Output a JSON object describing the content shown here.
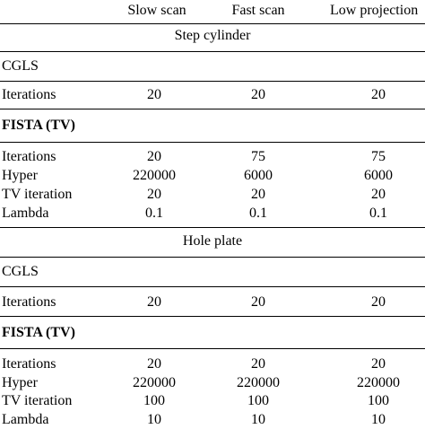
{
  "headers": {
    "col1": "Slow scan",
    "col2": "Fast scan",
    "col3": "Low projection"
  },
  "sections": [
    {
      "title": "Step cylinder",
      "cgls": {
        "label": "CGLS",
        "rows": [
          {
            "label": "Iterations",
            "values": [
              "20",
              "20",
              "20"
            ]
          }
        ]
      },
      "fista": {
        "label": "FISTA (TV)",
        "rows": [
          {
            "label": "Iterations",
            "values": [
              "20",
              "75",
              "75"
            ]
          },
          {
            "label": "Hyper",
            "values": [
              "220000",
              "6000",
              "6000"
            ]
          },
          {
            "label": "TV iteration",
            "values": [
              "20",
              "20",
              "20"
            ]
          },
          {
            "label": "Lambda",
            "values": [
              "0.1",
              "0.1",
              "0.1"
            ]
          }
        ]
      }
    },
    {
      "title": "Hole plate",
      "cgls": {
        "label": "CGLS",
        "rows": [
          {
            "label": "Iterations",
            "values": [
              "20",
              "20",
              "20"
            ]
          }
        ]
      },
      "fista": {
        "label": "FISTA (TV)",
        "rows": [
          {
            "label": "Iterations",
            "values": [
              "20",
              "20",
              "20"
            ]
          },
          {
            "label": "Hyper",
            "values": [
              "220000",
              "220000",
              "220000"
            ]
          },
          {
            "label": "TV iteration",
            "values": [
              "100",
              "100",
              "100"
            ]
          },
          {
            "label": "Lambda",
            "values": [
              "10",
              "10",
              "10"
            ]
          }
        ]
      }
    }
  ]
}
